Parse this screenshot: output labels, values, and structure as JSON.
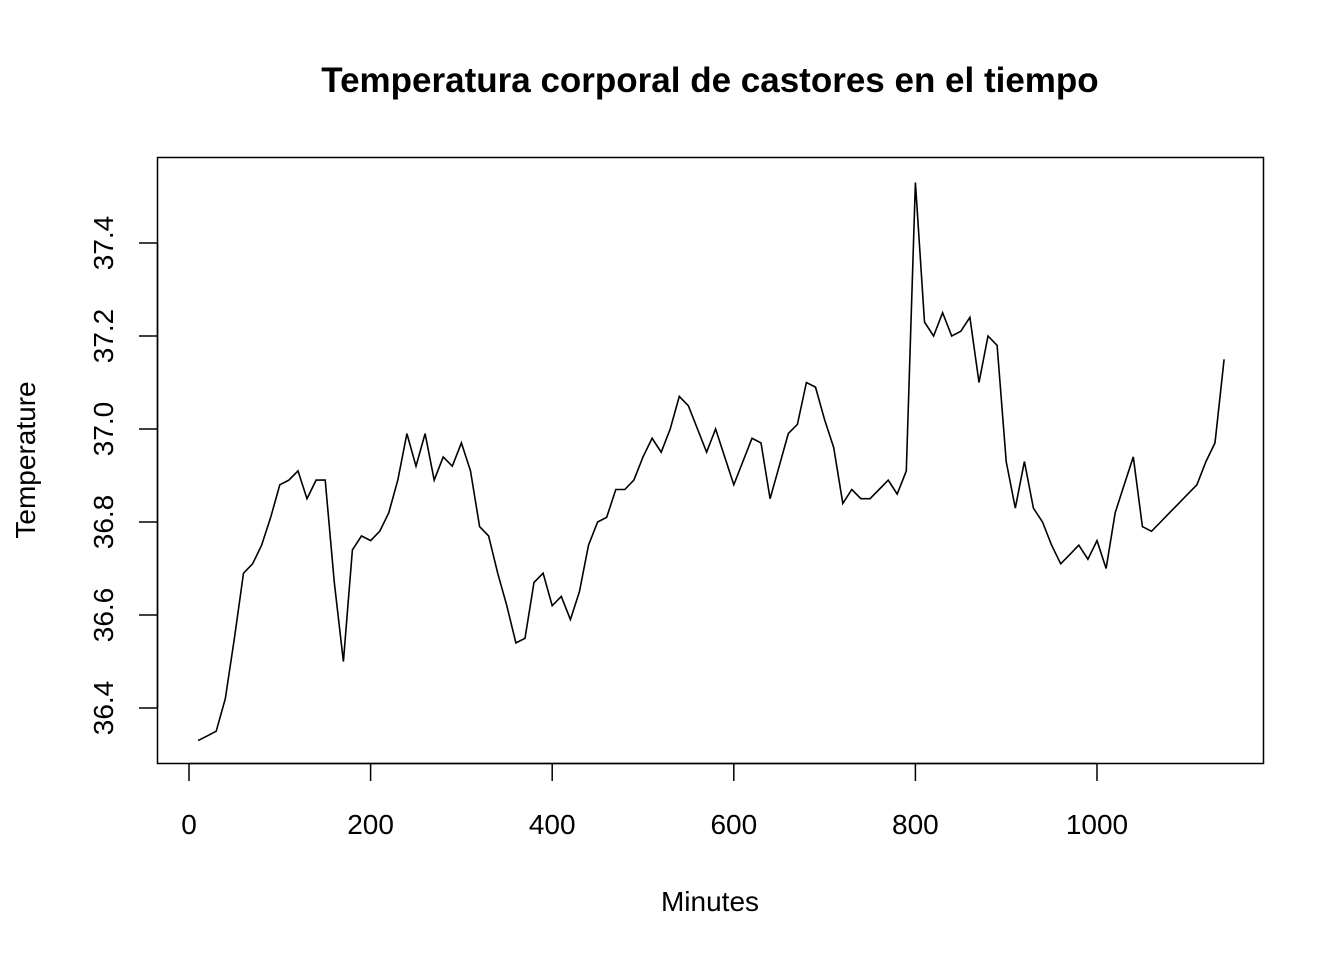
{
  "chart_data": {
    "type": "line",
    "title": "Temperatura corporal de castores en el tiempo",
    "xlabel": "Minutes",
    "ylabel": "Temperature",
    "xlim": [
      -25,
      1195
    ],
    "ylim": [
      36.3,
      37.57
    ],
    "xticks": [
      0,
      200,
      400,
      600,
      800,
      1000
    ],
    "yticks": [
      36.4,
      36.6,
      36.8,
      37.0,
      37.2,
      37.4
    ],
    "xtick_labels": [
      "0",
      "200",
      "400",
      "600",
      "800",
      "1000"
    ],
    "ytick_labels": [
      "36.4",
      "36.6",
      "36.8",
      "37.0",
      "37.2",
      "37.4"
    ],
    "grid": false,
    "x_start": 10,
    "x_step": 10,
    "series": [
      {
        "name": "Temperature",
        "color": "#000000",
        "values": [
          36.33,
          36.34,
          36.35,
          36.42,
          36.55,
          36.69,
          36.71,
          36.75,
          36.81,
          36.88,
          36.89,
          36.91,
          36.85,
          36.89,
          36.89,
          36.67,
          36.5,
          36.74,
          36.77,
          36.76,
          36.78,
          36.82,
          36.89,
          36.99,
          36.92,
          36.99,
          36.89,
          36.94,
          36.92,
          36.97,
          36.91,
          36.79,
          36.77,
          36.69,
          36.62,
          36.54,
          36.55,
          36.67,
          36.69,
          36.62,
          36.64,
          36.59,
          36.65,
          36.75,
          36.8,
          36.81,
          36.87,
          36.87,
          36.89,
          36.94,
          36.98,
          36.95,
          37.0,
          37.07,
          37.05,
          37.0,
          36.95,
          37.0,
          36.94,
          36.88,
          36.93,
          36.98,
          36.97,
          36.85,
          36.92,
          36.99,
          37.01,
          37.1,
          37.09,
          37.02,
          36.96,
          36.84,
          36.87,
          36.85,
          36.85,
          36.87,
          36.89,
          36.86,
          36.91,
          37.53,
          37.23,
          37.2,
          37.25,
          37.2,
          37.21,
          37.24,
          37.1,
          37.2,
          37.18,
          36.93,
          36.83,
          36.93,
          36.83,
          36.8,
          36.75,
          36.71,
          36.73,
          36.75,
          36.72,
          36.76,
          36.7,
          36.82,
          36.88,
          36.94,
          36.79,
          36.78,
          36.8,
          36.82,
          36.84,
          36.86,
          36.88,
          36.93,
          36.97,
          37.15
        ]
      }
    ]
  }
}
